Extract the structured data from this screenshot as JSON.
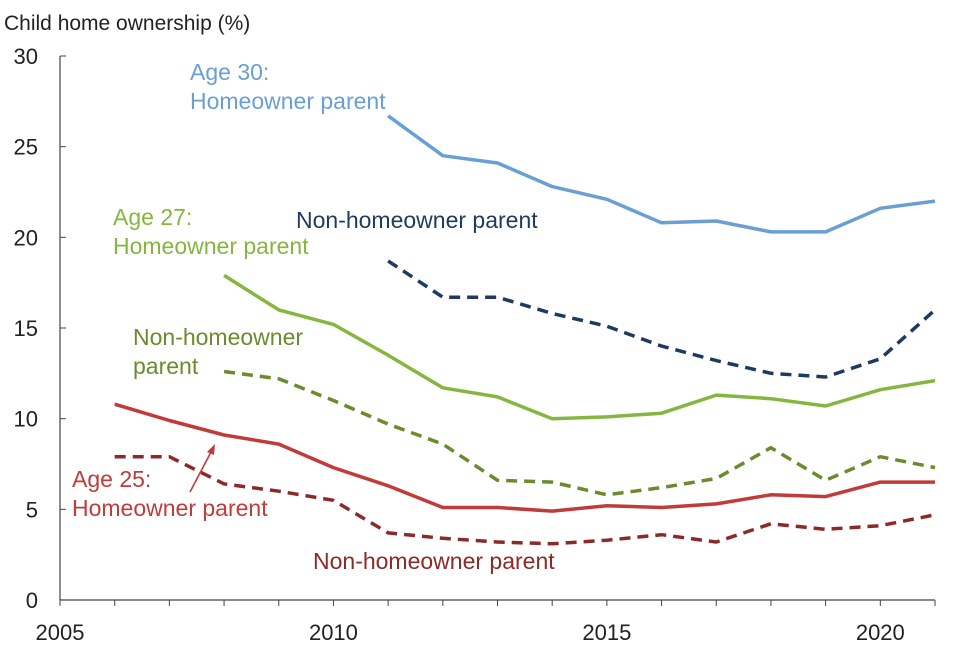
{
  "chart_data": {
    "type": "line",
    "title": "",
    "xlabel": "",
    "ylabel": "Child home ownership (%)",
    "xlim": [
      2005,
      2021
    ],
    "ylim": [
      0,
      30
    ],
    "x_ticks": [
      "2005",
      "2010",
      "2015",
      "2020"
    ],
    "y_ticks": [
      "0",
      "5",
      "10",
      "15",
      "20",
      "25",
      "30"
    ],
    "grid": false,
    "series": [
      {
        "color": "#6a9fd4",
        "dash": false,
        "x": [
          2011,
          2012,
          2013,
          2014,
          2015,
          2016,
          2017,
          2018,
          2019,
          2020,
          2021
        ],
        "values": [
          26.7,
          24.5,
          24.1,
          22.8,
          22.1,
          20.8,
          20.9,
          20.3,
          20.3,
          21.6,
          22.0
        ]
      },
      {
        "color": "#1f3a5f",
        "dash": true,
        "x": [
          2011,
          2012,
          2013,
          2014,
          2015,
          2016,
          2017,
          2018,
          2019,
          2020,
          2021
        ],
        "values": [
          18.7,
          16.7,
          16.7,
          15.8,
          15.1,
          14.0,
          13.2,
          12.5,
          12.3,
          13.3,
          16.0
        ]
      },
      {
        "color": "#86b640",
        "dash": false,
        "x": [
          2008,
          2009,
          2010,
          2011,
          2012,
          2013,
          2014,
          2015,
          2016,
          2017,
          2018,
          2019,
          2020,
          2021
        ],
        "values": [
          17.9,
          16.0,
          15.2,
          13.5,
          11.7,
          11.2,
          10.0,
          10.1,
          10.3,
          11.3,
          11.1,
          10.7,
          11.6,
          12.1
        ]
      },
      {
        "color": "#6a8c2c",
        "dash": true,
        "x": [
          2008,
          2009,
          2010,
          2011,
          2012,
          2013,
          2014,
          2015,
          2016,
          2017,
          2018,
          2019,
          2020,
          2021
        ],
        "values": [
          12.6,
          12.2,
          11.0,
          9.7,
          8.6,
          6.6,
          6.5,
          5.8,
          6.2,
          6.7,
          8.4,
          6.6,
          7.9,
          7.3
        ]
      },
      {
        "color": "#c23b3b",
        "dash": false,
        "x": [
          2006,
          2007,
          2008,
          2009,
          2010,
          2011,
          2012,
          2013,
          2014,
          2015,
          2016,
          2017,
          2018,
          2019,
          2020,
          2021
        ],
        "values": [
          10.8,
          9.9,
          9.1,
          8.6,
          7.3,
          6.3,
          5.1,
          5.1,
          4.9,
          5.2,
          5.1,
          5.3,
          5.8,
          5.7,
          6.5,
          6.5
        ]
      },
      {
        "color": "#8c2a2a",
        "dash": true,
        "x": [
          2006,
          2007,
          2008,
          2009,
          2010,
          2011,
          2012,
          2013,
          2014,
          2015,
          2016,
          2017,
          2018,
          2019,
          2020,
          2021
        ],
        "values": [
          7.9,
          7.9,
          6.4,
          6.0,
          5.5,
          3.7,
          3.4,
          3.2,
          3.1,
          3.3,
          3.6,
          3.2,
          4.2,
          3.9,
          4.1,
          4.7
        ]
      }
    ],
    "annotations": [
      {
        "id": "age30",
        "lines": [
          "Age 30:",
          "Homeowner parent"
        ],
        "color": "#6a9fd4"
      },
      {
        "id": "age30nh",
        "lines": [
          "Non-homeowner parent"
        ],
        "color": "#1f3a5f"
      },
      {
        "id": "age27",
        "lines": [
          "Age 27:",
          "Homeowner parent"
        ],
        "color": "#86b640"
      },
      {
        "id": "age27nh",
        "lines": [
          "Non-homeowner",
          "parent"
        ],
        "color": "#6a8c2c"
      },
      {
        "id": "age25",
        "lines": [
          "Age 25:",
          "Homeowner parent"
        ],
        "color": "#c23b3b"
      },
      {
        "id": "age25nh",
        "lines": [
          "Non-homeowner parent"
        ],
        "color": "#8c2a2a"
      }
    ]
  }
}
